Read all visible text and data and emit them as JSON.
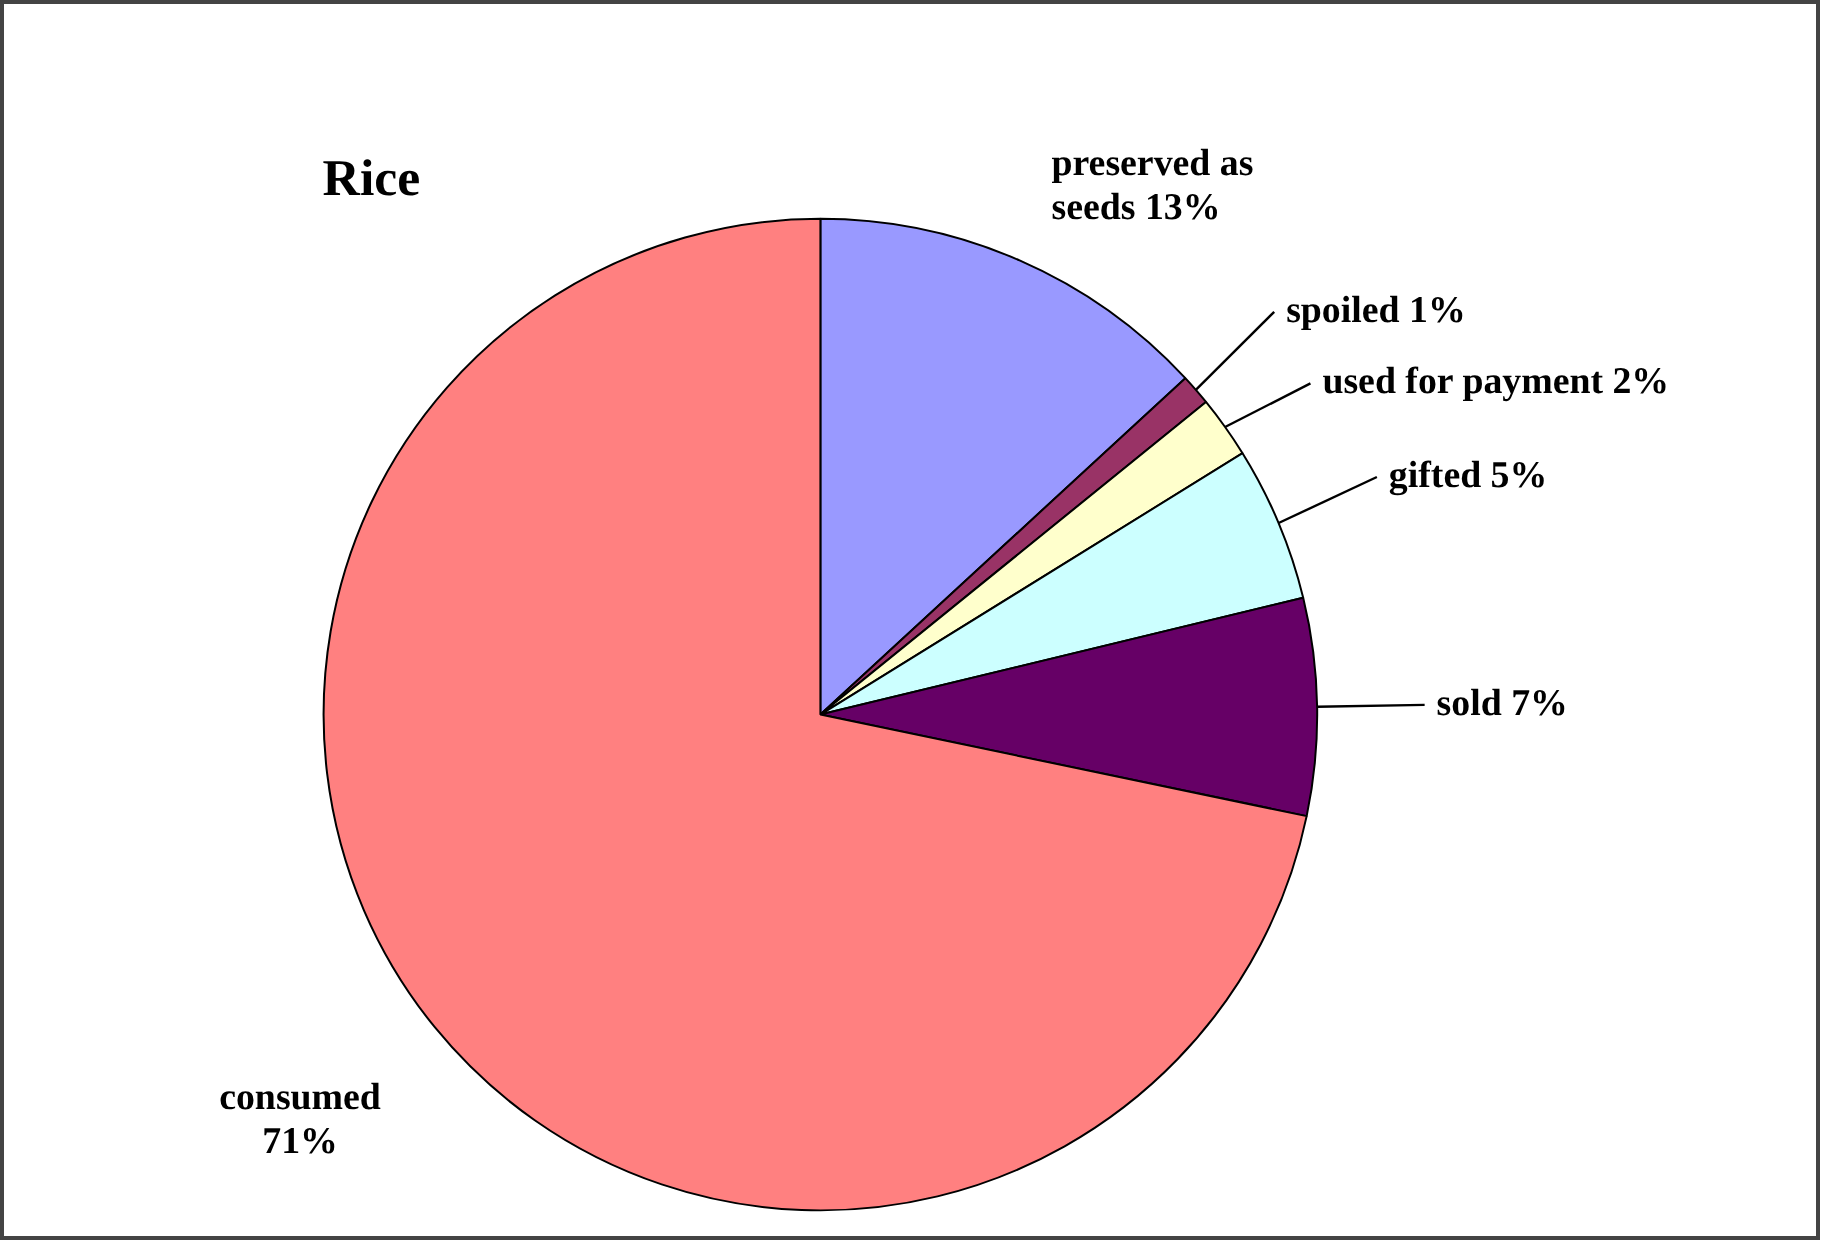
{
  "chart_data": {
    "type": "pie",
    "title": "Rice",
    "categories": [
      "preserved as seeds",
      "spoiled",
      "used for payment",
      "gifted",
      "sold",
      "consumed"
    ],
    "values": [
      13,
      1,
      2,
      5,
      7,
      71
    ],
    "value_labels": [
      "13%",
      "1%",
      "2%",
      "5%",
      "7%",
      "71%"
    ],
    "colors": [
      "#9999ff",
      "#993366",
      "#ffffcc",
      "#ccffff",
      "#660066",
      "#ff8080"
    ],
    "legend": false
  }
}
